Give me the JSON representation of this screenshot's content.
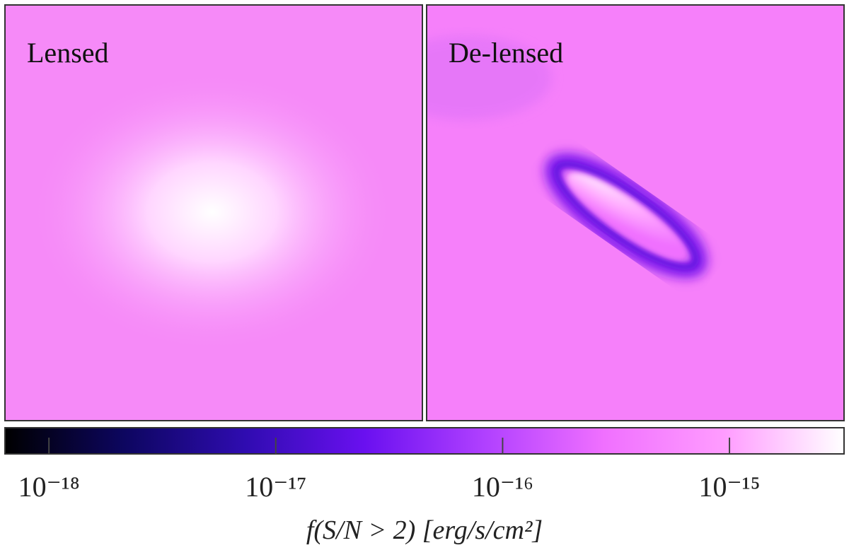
{
  "chart_data": {
    "type": "image-colorbar",
    "panels": [
      {
        "label": "Lensed"
      },
      {
        "label": "De-lensed"
      }
    ],
    "colorbar": {
      "label": "f(S/N > 2) [erg/s/cm²]",
      "scale": "log",
      "xlim": [
        6.4e-19,
        3.2e-15
      ],
      "xticks": [
        {
          "value": 1e-18,
          "label": "10⁻¹⁸"
        },
        {
          "value": 1e-17,
          "label": "10⁻¹⁷"
        },
        {
          "value": 1e-16,
          "label": "10⁻¹⁶"
        },
        {
          "value": 1e-15,
          "label": "10⁻¹⁵"
        }
      ],
      "colormap": [
        "#000000",
        "#0d0660",
        "#2f0cb0",
        "#6a10f0",
        "#b040ff",
        "#f070ff",
        "#ff9cff",
        "#ffffff"
      ]
    }
  }
}
